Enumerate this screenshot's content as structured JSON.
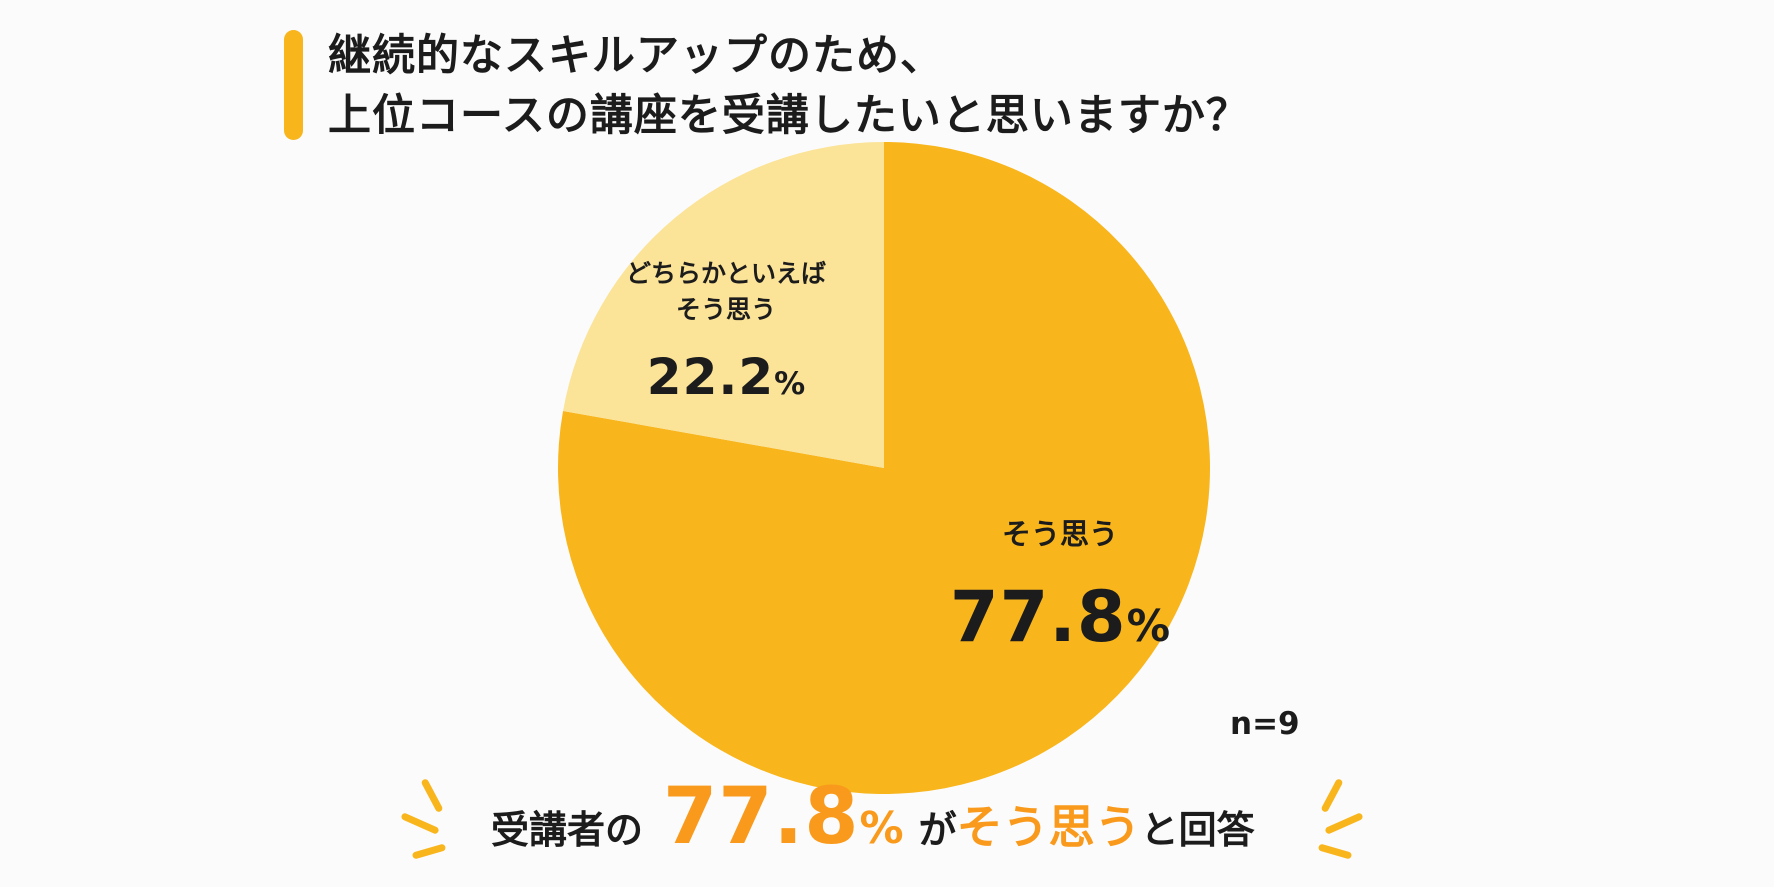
{
  "title": {
    "line1": "継続的なスキルアップのため、",
    "line2": "上位コースの講座を受講したいと思いますか？"
  },
  "chart_data": {
    "type": "pie",
    "title": "継続的なスキルアップのため、上位コースの講座を受講したいと思いますか？",
    "slices": [
      {
        "label": "そう思う",
        "value": 77.8,
        "display": "77.8",
        "color": "#f8b51c"
      },
      {
        "label_line1": "どちらかといえば",
        "label_line2": "そう思う",
        "value": 22.2,
        "display": "22.2",
        "color": "#fbe397"
      }
    ],
    "unit": "%",
    "n": "n=9"
  },
  "summary": {
    "prefix": "受講者の",
    "value": "77.8",
    "unit": "%",
    "mid": "が",
    "highlight": "そう思う",
    "suffix": "と回答"
  },
  "colors": {
    "accent": "#f8b51c",
    "accent_light": "#fbe397",
    "highlight_text": "#f99a1c"
  }
}
